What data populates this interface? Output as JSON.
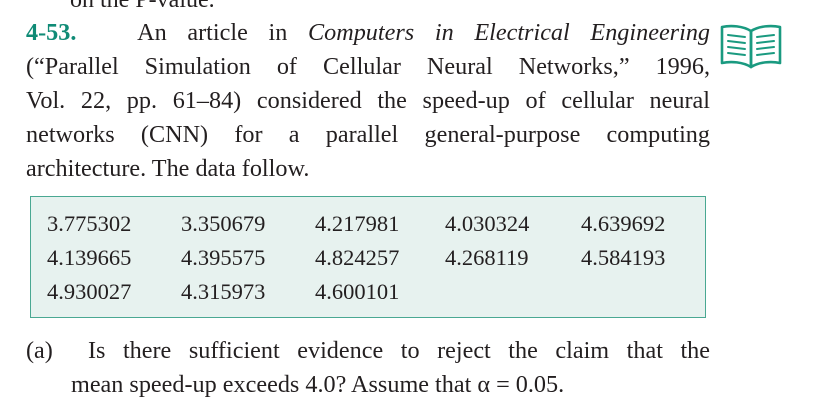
{
  "previous_text_fragment": "on the P-value.",
  "problem": {
    "number": "4-53.",
    "line1_before_italic": "An article in ",
    "line1_italic": "Computers in Electrical Engineering",
    "line2": "(“Parallel Simulation of Cellular Neural Networks,” 1996,",
    "line3": "Vol. 22, pp. 61–84) considered the speed-up of cellular neural",
    "line4": "networks (CNN) for a parallel general-purpose computing",
    "line5": "architecture. The data follow."
  },
  "icon": {
    "name": "open-book-icon",
    "color": "#1a9a80"
  },
  "data_table": {
    "rows": [
      [
        "3.775302",
        "3.350679",
        "4.217981",
        "4.030324",
        "4.639692"
      ],
      [
        "4.139665",
        "4.395575",
        "4.824257",
        "4.268119",
        "4.584193"
      ],
      [
        "4.930027",
        "4.315973",
        "4.600101"
      ]
    ],
    "background_color": "#e7f2ef",
    "border_color": "#4aa892"
  },
  "question": {
    "label": "(a)",
    "line1": "Is there sufficient evidence to reject the claim that the",
    "line2": "mean speed-up exceeds 4.0? Assume that α = 0.05."
  },
  "colors": {
    "text": "#231f20",
    "problem_number": "#0f8b76"
  }
}
